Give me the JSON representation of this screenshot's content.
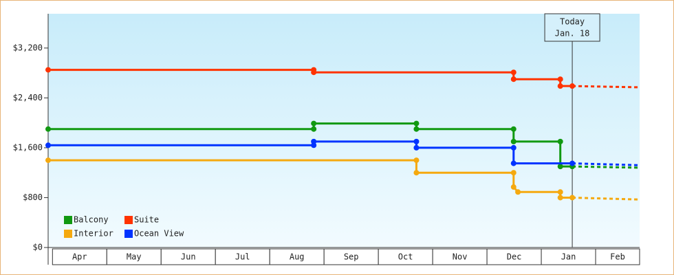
{
  "chart_data": {
    "type": "step-line",
    "categories": [
      "Apr",
      "May",
      "Jun",
      "Jul",
      "Aug",
      "Sep",
      "Oct",
      "Nov",
      "Dec",
      "Jan",
      "Feb"
    ],
    "xlim": [
      -0.08,
      10.81
    ],
    "ylim": [
      0,
      3750
    ],
    "yticks": [
      {
        "value": 0,
        "label": "$0"
      },
      {
        "value": 800,
        "label": "$800"
      },
      {
        "value": 1600,
        "label": "$1,600"
      },
      {
        "value": 2400,
        "label": "$2,400"
      },
      {
        "value": 3200,
        "label": "$3,200"
      }
    ],
    "legend": "bottom-left",
    "annotation": {
      "lines": [
        "Today",
        "Jan. 18"
      ],
      "x": 9.57
    },
    "series": [
      {
        "name": "Balcony",
        "color": "#119911",
        "x": [
          -0.08,
          4.81,
          4.81,
          6.7,
          6.7,
          8.49,
          8.49,
          9.35,
          9.35,
          9.57
        ],
        "values": [
          1900,
          1900,
          1990,
          1990,
          1900,
          1900,
          1700,
          1700,
          1300,
          1300
        ],
        "forecast_x": [
          9.57,
          10.81
        ],
        "forecast_values": [
          1300,
          1280
        ]
      },
      {
        "name": "Suite",
        "color": "#ff3300",
        "x": [
          -0.08,
          4.81,
          4.81,
          8.49,
          8.49,
          9.35,
          9.35,
          9.57
        ],
        "values": [
          2850,
          2850,
          2810,
          2810,
          2700,
          2700,
          2590,
          2590
        ],
        "forecast_x": [
          9.57,
          10.81
        ],
        "forecast_values": [
          2590,
          2570
        ]
      },
      {
        "name": "Interior",
        "color": "#f5a90f",
        "x": [
          -0.08,
          6.7,
          6.7,
          8.49,
          8.49,
          8.57,
          9.35,
          9.35,
          9.57
        ],
        "values": [
          1400,
          1400,
          1200,
          1200,
          970,
          890,
          890,
          800,
          800
        ],
        "forecast_x": [
          9.57,
          10.81
        ],
        "forecast_values": [
          800,
          770
        ]
      },
      {
        "name": "Ocean View",
        "color": "#0033ff",
        "x": [
          -0.08,
          4.81,
          4.81,
          6.7,
          6.7,
          8.49,
          8.49,
          9.57
        ],
        "values": [
          1640,
          1640,
          1700,
          1700,
          1600,
          1600,
          1350,
          1350
        ],
        "forecast_x": [
          9.57,
          10.81
        ],
        "forecast_values": [
          1350,
          1320
        ]
      }
    ]
  }
}
